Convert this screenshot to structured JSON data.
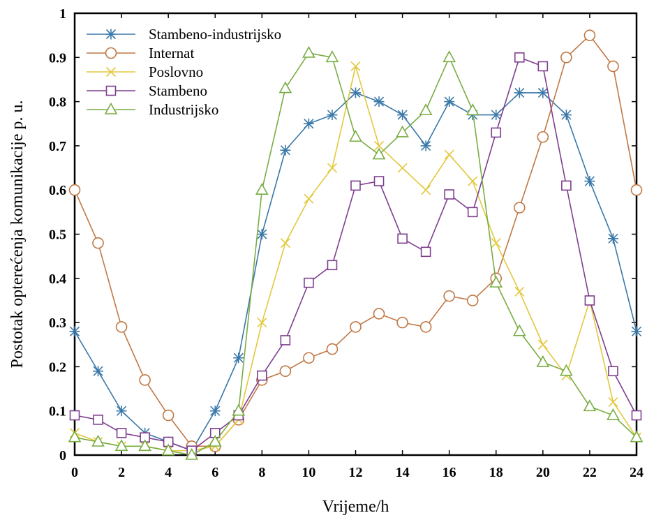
{
  "chart_data": {
    "type": "line",
    "title": "",
    "xlabel": "Vrijeme/h",
    "ylabel": "Postotak opterećenja komunikacije p. u.",
    "xlim": [
      0,
      24
    ],
    "ylim": [
      0,
      1
    ],
    "x_ticks": [
      "0",
      "2",
      "4",
      "6",
      "8",
      "10",
      "12",
      "14",
      "16",
      "18",
      "20",
      "22",
      "24"
    ],
    "y_ticks": [
      "0",
      "0.1",
      "0.2",
      "0.3",
      "0.4",
      "0.5",
      "0.6",
      "0.7",
      "0.8",
      "0.9",
      "1"
    ],
    "grid": false,
    "legend_position": "top-left",
    "x": [
      0,
      1,
      2,
      3,
      4,
      5,
      6,
      7,
      8,
      9,
      10,
      11,
      12,
      13,
      14,
      15,
      16,
      17,
      18,
      19,
      20,
      21,
      22,
      23,
      24
    ],
    "series": [
      {
        "name": "Stambeno-industrijsko",
        "color": "#3a78a8",
        "marker": "asterisk",
        "values": [
          0.28,
          0.19,
          0.1,
          0.05,
          0.03,
          0.01,
          0.1,
          0.22,
          0.5,
          0.69,
          0.75,
          0.77,
          0.82,
          0.8,
          0.77,
          0.7,
          0.8,
          0.77,
          0.77,
          0.82,
          0.82,
          0.77,
          0.62,
          0.49,
          0.28
        ]
      },
      {
        "name": "Internat",
        "color": "#c07845",
        "marker": "circle",
        "values": [
          0.6,
          0.48,
          0.29,
          0.17,
          0.09,
          0.02,
          0.02,
          0.08,
          0.17,
          0.19,
          0.22,
          0.24,
          0.29,
          0.32,
          0.3,
          0.29,
          0.36,
          0.35,
          0.4,
          0.56,
          0.72,
          0.9,
          0.95,
          0.88,
          0.6
        ]
      },
      {
        "name": "Poslovno",
        "color": "#e3c83d",
        "marker": "cross",
        "values": [
          0.05,
          0.03,
          0.02,
          0.02,
          0.01,
          0.01,
          0.02,
          0.08,
          0.3,
          0.48,
          0.58,
          0.65,
          0.88,
          0.7,
          0.65,
          0.6,
          0.68,
          0.62,
          0.48,
          0.37,
          0.25,
          0.18,
          0.35,
          0.12,
          0.04
        ]
      },
      {
        "name": "Stambeno",
        "color": "#7e3f8f",
        "marker": "square",
        "values": [
          0.09,
          0.08,
          0.05,
          0.04,
          0.03,
          0.01,
          0.05,
          0.09,
          0.18,
          0.26,
          0.39,
          0.43,
          0.61,
          0.62,
          0.49,
          0.46,
          0.59,
          0.55,
          0.73,
          0.9,
          0.88,
          0.61,
          0.35,
          0.19,
          0.09
        ]
      },
      {
        "name": "Industrijsko",
        "color": "#79ad43",
        "marker": "triangle",
        "values": [
          0.04,
          0.03,
          0.02,
          0.02,
          0.01,
          0.0,
          0.03,
          0.1,
          0.6,
          0.83,
          0.91,
          0.9,
          0.72,
          0.68,
          0.73,
          0.78,
          0.9,
          0.78,
          0.39,
          0.28,
          0.21,
          0.19,
          0.11,
          0.09,
          0.04
        ]
      }
    ]
  }
}
